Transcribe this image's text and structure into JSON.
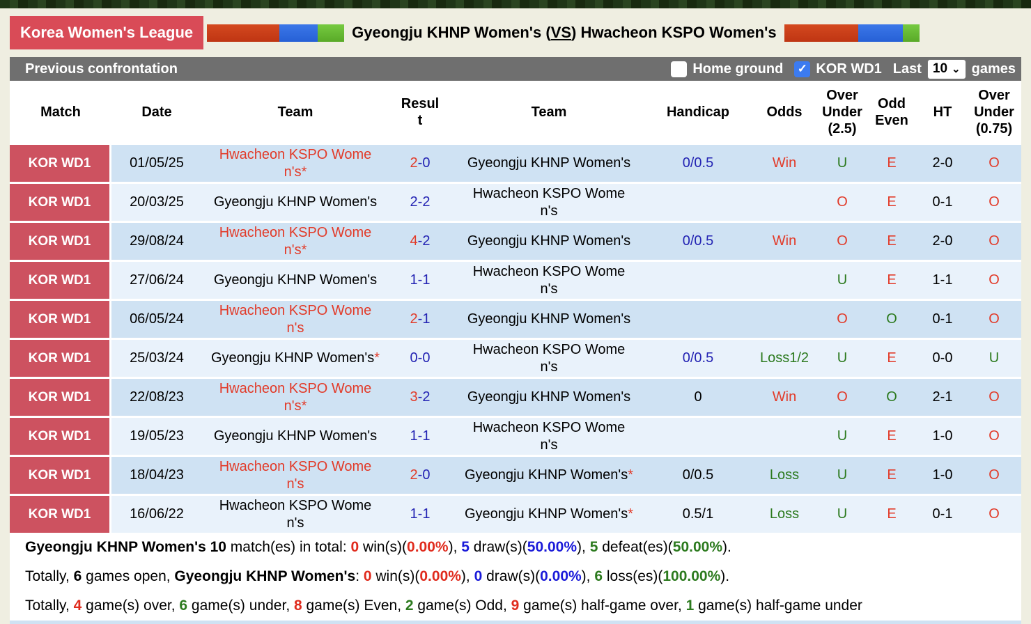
{
  "colors": {
    "badge_red": "#d94b57",
    "row_league_red": "#cd5260",
    "toolbar_gray": "#6f6f6f",
    "row_odd_bg": "#cfe2f3",
    "row_even_bg": "#e9f2fb",
    "text_red": "#e23a28",
    "text_blue": "#2323b3",
    "text_green": "#2c7a1e",
    "checked_checkbox_blue": "#3c7bf0",
    "bar_red": "#c8391b",
    "bar_blue": "#2f6ce2",
    "bar_green": "#64bb33"
  },
  "header": {
    "league_badge": "Korea Women's League",
    "title_pre": "Gyeongju KHNP Women's (",
    "title_vs": "VS",
    "title_post": ") Hwacheon KSPO Women's"
  },
  "toolbar": {
    "title": "Previous confrontation",
    "home_ground_label": "Home ground",
    "home_ground_checked": false,
    "league_filter_label": "KOR WD1",
    "league_filter_checked": true,
    "check_glyph": "✓",
    "last_label": "Last",
    "games_count": "10",
    "chevron": "⌄",
    "games_label": "games"
  },
  "table": {
    "headers": [
      "Match",
      "Date",
      "Team",
      "Result",
      "Team",
      "Handicap",
      "Odds",
      "Over Under (2.5)",
      "Odd Even",
      "HT",
      "Over Under (0.75)"
    ],
    "rows": [
      {
        "match": "KOR WD1",
        "date": "01/05/25",
        "t1": {
          "name": "Hwacheon KSPO Women's",
          "c": "red",
          "star": "*"
        },
        "res": {
          "s1": "2",
          "c1": "red",
          "s2": "0",
          "c2": "blue"
        },
        "t2": {
          "name": "Gyeongju KHNP Women's",
          "c": "black",
          "star": ""
        },
        "handicap": {
          "t": "0/0.5",
          "c": "blue"
        },
        "odds": {
          "t": "Win",
          "c": "red"
        },
        "ou25": {
          "t": "U",
          "c": "green"
        },
        "oe": {
          "t": "E",
          "c": "red"
        },
        "ht": "2-0",
        "ou075": {
          "t": "O",
          "c": "red"
        }
      },
      {
        "match": "KOR WD1",
        "date": "20/03/25",
        "t1": {
          "name": "Gyeongju KHNP Women's",
          "c": "black",
          "star": ""
        },
        "res": {
          "s1": "2",
          "c1": "blue",
          "s2": "2",
          "c2": "blue"
        },
        "t2": {
          "name": "Hwacheon KSPO Women's",
          "c": "black",
          "star": ""
        },
        "handicap": {
          "t": "",
          "c": "black"
        },
        "odds": {
          "t": "",
          "c": "black"
        },
        "ou25": {
          "t": "O",
          "c": "red"
        },
        "oe": {
          "t": "E",
          "c": "red"
        },
        "ht": "0-1",
        "ou075": {
          "t": "O",
          "c": "red"
        }
      },
      {
        "match": "KOR WD1",
        "date": "29/08/24",
        "t1": {
          "name": "Hwacheon KSPO Women's",
          "c": "red",
          "star": "*"
        },
        "res": {
          "s1": "4",
          "c1": "red",
          "s2": "2",
          "c2": "blue"
        },
        "t2": {
          "name": "Gyeongju KHNP Women's",
          "c": "black",
          "star": ""
        },
        "handicap": {
          "t": "0/0.5",
          "c": "blue"
        },
        "odds": {
          "t": "Win",
          "c": "red"
        },
        "ou25": {
          "t": "O",
          "c": "red"
        },
        "oe": {
          "t": "E",
          "c": "red"
        },
        "ht": "2-0",
        "ou075": {
          "t": "O",
          "c": "red"
        }
      },
      {
        "match": "KOR WD1",
        "date": "27/06/24",
        "t1": {
          "name": "Gyeongju KHNP Women's",
          "c": "black",
          "star": ""
        },
        "res": {
          "s1": "1",
          "c1": "blue",
          "s2": "1",
          "c2": "blue"
        },
        "t2": {
          "name": "Hwacheon KSPO Women's",
          "c": "black",
          "star": ""
        },
        "handicap": {
          "t": "",
          "c": "black"
        },
        "odds": {
          "t": "",
          "c": "black"
        },
        "ou25": {
          "t": "U",
          "c": "green"
        },
        "oe": {
          "t": "E",
          "c": "red"
        },
        "ht": "1-1",
        "ou075": {
          "t": "O",
          "c": "red"
        }
      },
      {
        "match": "KOR WD1",
        "date": "06/05/24",
        "t1": {
          "name": "Hwacheon KSPO Women's",
          "c": "red",
          "star": ""
        },
        "res": {
          "s1": "2",
          "c1": "red",
          "s2": "1",
          "c2": "blue"
        },
        "t2": {
          "name": "Gyeongju KHNP Women's",
          "c": "black",
          "star": ""
        },
        "handicap": {
          "t": "",
          "c": "black"
        },
        "odds": {
          "t": "",
          "c": "black"
        },
        "ou25": {
          "t": "O",
          "c": "red"
        },
        "oe": {
          "t": "O",
          "c": "green"
        },
        "ht": "0-1",
        "ou075": {
          "t": "O",
          "c": "red"
        }
      },
      {
        "match": "KOR WD1",
        "date": "25/03/24",
        "t1": {
          "name": "Gyeongju KHNP Women's",
          "c": "black",
          "star": "*"
        },
        "res": {
          "s1": "0",
          "c1": "blue",
          "s2": "0",
          "c2": "blue"
        },
        "t2": {
          "name": "Hwacheon KSPO Women's",
          "c": "black",
          "star": ""
        },
        "handicap": {
          "t": "0/0.5",
          "c": "blue"
        },
        "odds": {
          "t": "Loss1/2",
          "c": "green"
        },
        "ou25": {
          "t": "U",
          "c": "green"
        },
        "oe": {
          "t": "E",
          "c": "red"
        },
        "ht": "0-0",
        "ou075": {
          "t": "U",
          "c": "green"
        }
      },
      {
        "match": "KOR WD1",
        "date": "22/08/23",
        "t1": {
          "name": "Hwacheon KSPO Women's",
          "c": "red",
          "star": "*"
        },
        "res": {
          "s1": "3",
          "c1": "red",
          "s2": "2",
          "c2": "blue"
        },
        "t2": {
          "name": "Gyeongju KHNP Women's",
          "c": "black",
          "star": ""
        },
        "handicap": {
          "t": "0",
          "c": "black"
        },
        "odds": {
          "t": "Win",
          "c": "red"
        },
        "ou25": {
          "t": "O",
          "c": "red"
        },
        "oe": {
          "t": "O",
          "c": "green"
        },
        "ht": "2-1",
        "ou075": {
          "t": "O",
          "c": "red"
        }
      },
      {
        "match": "KOR WD1",
        "date": "19/05/23",
        "t1": {
          "name": "Gyeongju KHNP Women's",
          "c": "black",
          "star": ""
        },
        "res": {
          "s1": "1",
          "c1": "blue",
          "s2": "1",
          "c2": "blue"
        },
        "t2": {
          "name": "Hwacheon KSPO Women's",
          "c": "black",
          "star": ""
        },
        "handicap": {
          "t": "",
          "c": "black"
        },
        "odds": {
          "t": "",
          "c": "black"
        },
        "ou25": {
          "t": "U",
          "c": "green"
        },
        "oe": {
          "t": "E",
          "c": "red"
        },
        "ht": "1-0",
        "ou075": {
          "t": "O",
          "c": "red"
        }
      },
      {
        "match": "KOR WD1",
        "date": "18/04/23",
        "t1": {
          "name": "Hwacheon KSPO Women's",
          "c": "red",
          "star": ""
        },
        "res": {
          "s1": "2",
          "c1": "red",
          "s2": "0",
          "c2": "blue"
        },
        "t2": {
          "name": "Gyeongju KHNP Women's",
          "c": "black",
          "star": "*"
        },
        "handicap": {
          "t": "0/0.5",
          "c": "black"
        },
        "odds": {
          "t": "Loss",
          "c": "green"
        },
        "ou25": {
          "t": "U",
          "c": "green"
        },
        "oe": {
          "t": "E",
          "c": "red"
        },
        "ht": "1-0",
        "ou075": {
          "t": "O",
          "c": "red"
        }
      },
      {
        "match": "KOR WD1",
        "date": "16/06/22",
        "t1": {
          "name": "Hwacheon KSPO Women's",
          "c": "black",
          "star": ""
        },
        "res": {
          "s1": "1",
          "c1": "blue",
          "s2": "1",
          "c2": "blue"
        },
        "t2": {
          "name": "Gyeongju KHNP Women's",
          "c": "black",
          "star": "*"
        },
        "handicap": {
          "t": "0.5/1",
          "c": "black"
        },
        "odds": {
          "t": "Loss",
          "c": "green"
        },
        "ou25": {
          "t": "U",
          "c": "green"
        },
        "oe": {
          "t": "E",
          "c": "red"
        },
        "ht": "0-1",
        "ou075": {
          "t": "O",
          "c": "red"
        }
      }
    ]
  },
  "summary": {
    "lines": [
      [
        {
          "t": "Gyeongju KHNP Women's 10 ",
          "b": true
        },
        {
          "t": "match(es) in total: "
        },
        {
          "t": "0",
          "c": "red"
        },
        {
          "t": " win(s)("
        },
        {
          "t": "0.00%",
          "c": "red"
        },
        {
          "t": "), "
        },
        {
          "t": "5",
          "c": "blue"
        },
        {
          "t": " draw(s)("
        },
        {
          "t": "50.00%",
          "c": "blue"
        },
        {
          "t": "), "
        },
        {
          "t": "5",
          "c": "green"
        },
        {
          "t": " defeat(es)("
        },
        {
          "t": "50.00%",
          "c": "green"
        },
        {
          "t": ")."
        }
      ],
      [
        {
          "t": "Totally, "
        },
        {
          "t": "6",
          "b": true
        },
        {
          "t": " games open, "
        },
        {
          "t": "Gyeongju KHNP Women's",
          "b": true
        },
        {
          "t": ": "
        },
        {
          "t": "0",
          "c": "red"
        },
        {
          "t": " win(s)("
        },
        {
          "t": "0.00%",
          "c": "red"
        },
        {
          "t": "), "
        },
        {
          "t": "0",
          "c": "blue"
        },
        {
          "t": " draw(s)("
        },
        {
          "t": "0.00%",
          "c": "blue"
        },
        {
          "t": "), "
        },
        {
          "t": "6",
          "c": "green"
        },
        {
          "t": " loss(es)("
        },
        {
          "t": "100.00%",
          "c": "green"
        },
        {
          "t": ")."
        }
      ],
      [
        {
          "t": "Totally, "
        },
        {
          "t": "4",
          "c": "red"
        },
        {
          "t": " game(s) over, "
        },
        {
          "t": "6",
          "c": "green"
        },
        {
          "t": " game(s) under, "
        },
        {
          "t": "8",
          "c": "red"
        },
        {
          "t": " game(s) Even, "
        },
        {
          "t": "2",
          "c": "green"
        },
        {
          "t": " game(s) Odd, "
        },
        {
          "t": "9",
          "c": "red"
        },
        {
          "t": " game(s) half-game over, "
        },
        {
          "t": "1",
          "c": "green"
        },
        {
          "t": " game(s) half-game under"
        }
      ]
    ]
  }
}
